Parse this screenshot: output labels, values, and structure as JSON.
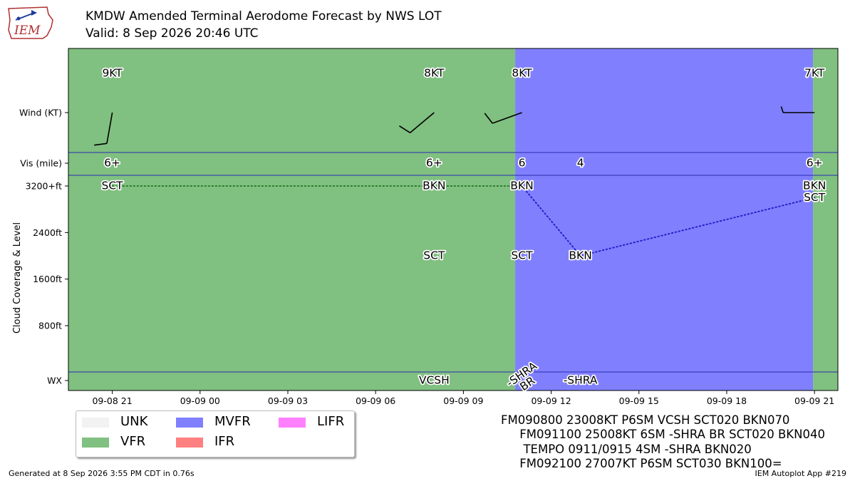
{
  "header": {
    "logo_text": "IEM",
    "title": "KMDW Amended Terminal Aerodome Forecast by NWS LOT",
    "subtitle": "Valid: 8 Sep 2026 20:46 UTC"
  },
  "colors": {
    "UNK": "#f2f2f2",
    "VFR": "#80c080",
    "MVFR": "#8080ff",
    "IFR": "#ff8080",
    "LIFR": "#ff80ff",
    "vfr_line": "#2e7d32",
    "mvfr_line": "#2222cc"
  },
  "chart_data": {
    "type": "timeline",
    "ylabel": "Cloud Coverage & Level",
    "row_labels": [
      "Wind (KT)",
      "Vis (mile)",
      "WX"
    ],
    "yticks": [
      "3200+ft",
      "2400ft",
      "1600ft",
      "800ft"
    ],
    "xticks": [
      "09-08 21",
      "09-09 00",
      "09-09 03",
      "09-09 06",
      "09-09 09",
      "09-09 12",
      "09-09 15",
      "09-09 18",
      "09-09 21"
    ],
    "xrange_hours_from_0908_20z": [
      -0.5,
      25.8
    ],
    "periods": [
      {
        "start": -0.5,
        "end": 14.77,
        "category": "VFR"
      },
      {
        "start": 14.77,
        "end": 24.95,
        "category": "MVFR"
      },
      {
        "start": 24.95,
        "end": 25.8,
        "category": "VFR"
      }
    ],
    "wind": [
      {
        "x": 1.0,
        "dir": 190,
        "speed": 9,
        "label": "9KT"
      },
      {
        "x": 12.0,
        "dir": 230,
        "speed": 8,
        "label": "8KT"
      },
      {
        "x": 15.0,
        "dir": 250,
        "speed": 8,
        "label": "8KT"
      },
      {
        "x": 25.0,
        "dir": 270,
        "speed": 7,
        "label": "7KT"
      }
    ],
    "visibility": [
      {
        "x": 1.0,
        "label": "6+"
      },
      {
        "x": 12.0,
        "label": "6+"
      },
      {
        "x": 15.0,
        "label": "6"
      },
      {
        "x": 17.0,
        "label": "4"
      },
      {
        "x": 25.0,
        "label": "6+"
      }
    ],
    "clouds": [
      {
        "x": 1.0,
        "level": 3200,
        "cover": "SCT"
      },
      {
        "x": 12.0,
        "level": 3200,
        "cover": "BKN"
      },
      {
        "x": 12.0,
        "level": 2000,
        "cover": "SCT"
      },
      {
        "x": 15.0,
        "level": 3200,
        "cover": "BKN"
      },
      {
        "x": 15.0,
        "level": 2000,
        "cover": "SCT"
      },
      {
        "x": 17.0,
        "level": 2000,
        "cover": "BKN"
      },
      {
        "x": 25.0,
        "level": 3200,
        "cover": "BKN"
      },
      {
        "x": 25.0,
        "level": 3000,
        "cover": "SCT"
      }
    ],
    "ceiling_lines": [
      {
        "color_key": "vfr_line",
        "points": [
          [
            1.0,
            3200
          ],
          [
            12.0,
            3200
          ],
          [
            15.0,
            3200
          ]
        ]
      },
      {
        "color_key": "mvfr_line",
        "points": [
          [
            15.0,
            3200
          ],
          [
            17.0,
            2000
          ],
          [
            25.0,
            3000
          ]
        ]
      }
    ],
    "weather": [
      {
        "x": 12.0,
        "label": "VCSH",
        "rotate": 0
      },
      {
        "x": 15.0,
        "label": "-SHRA",
        "rotate": -35
      },
      {
        "x": 15.2,
        "label": "BR",
        "rotate": -35
      },
      {
        "x": 17.0,
        "label": "-SHRA",
        "rotate": 0
      }
    ]
  },
  "legend": [
    {
      "key": "UNK",
      "label": "UNK"
    },
    {
      "key": "VFR",
      "label": "VFR"
    },
    {
      "key": "MVFR",
      "label": "MVFR"
    },
    {
      "key": "IFR",
      "label": "IFR"
    },
    {
      "key": "LIFR",
      "label": "LIFR"
    }
  ],
  "taf_text": [
    "FM090800 23008KT P6SM VCSH SCT020 BKN070",
    "     FM091100 25008KT 6SM -SHRA BR SCT020 BKN040",
    "      TEMPO 0911/0915 4SM -SHRA BKN020",
    "     FM092100 27007KT P6SM SCT030 BKN100="
  ],
  "footer": {
    "left": "Generated at 8 Sep 2026 3:55 PM CDT in 0.76s",
    "right": "IEM Autoplot App #219"
  }
}
